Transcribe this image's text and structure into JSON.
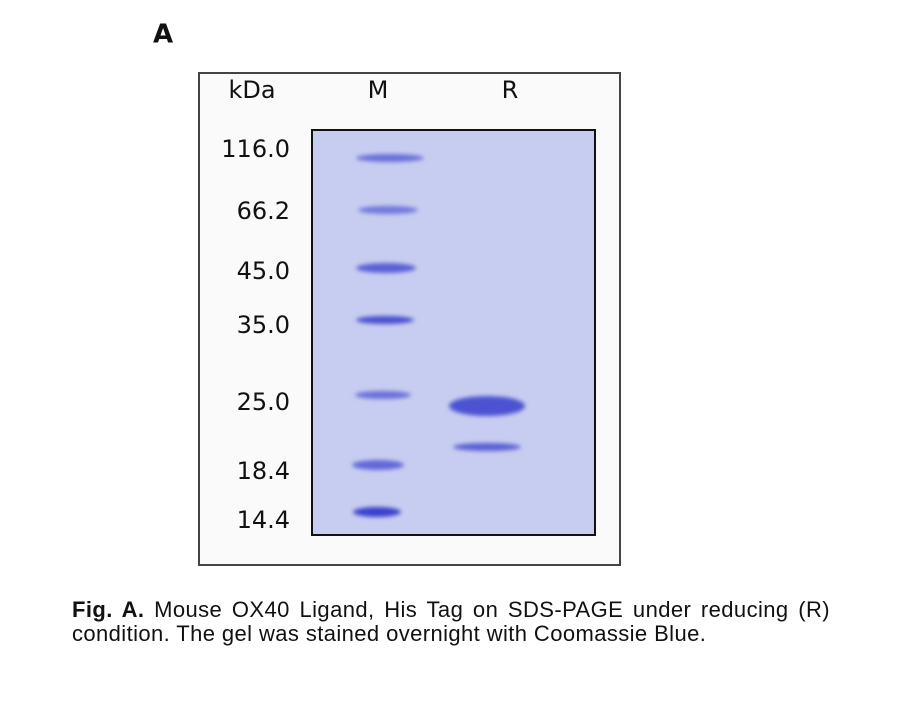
{
  "panel_label": "A",
  "gel": {
    "header": {
      "unit": "kDa",
      "lanes": [
        "M",
        "R"
      ]
    },
    "markers": [
      "116.0",
      "66.2",
      "45.0",
      "35.0",
      "25.0",
      "18.4",
      "14.4"
    ]
  },
  "caption": {
    "label": "Fig. A.",
    "text": "Mouse OX40 Ligand, His Tag on SDS-PAGE under reducing (R) condition. The gel was stained overnight with Coomassie Blue."
  }
}
